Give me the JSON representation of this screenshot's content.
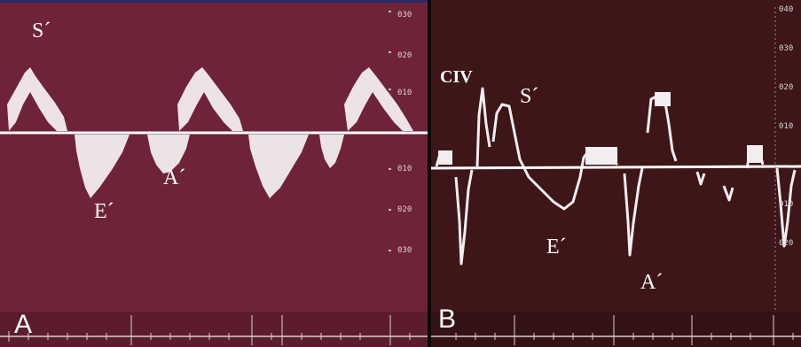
{
  "panel_a": {
    "letter": "A",
    "labels": {
      "s": "S´",
      "e": "E´",
      "a": "A´"
    },
    "scale_ticks": [
      "030",
      "020",
      "010",
      "010",
      "020",
      "030"
    ],
    "background": "#6e2338"
  },
  "panel_b": {
    "letter": "B",
    "labels": {
      "civ": "CIV",
      "s": "S´",
      "e": "E´",
      "a": "A´"
    },
    "scale_ticks": [
      "040",
      "030",
      "020",
      "010",
      "010",
      "020"
    ],
    "background": "#3e1618"
  },
  "colors": {
    "baseline": "#ffffff",
    "trace": "#f2eef0",
    "divider": "#0a0a0a"
  }
}
